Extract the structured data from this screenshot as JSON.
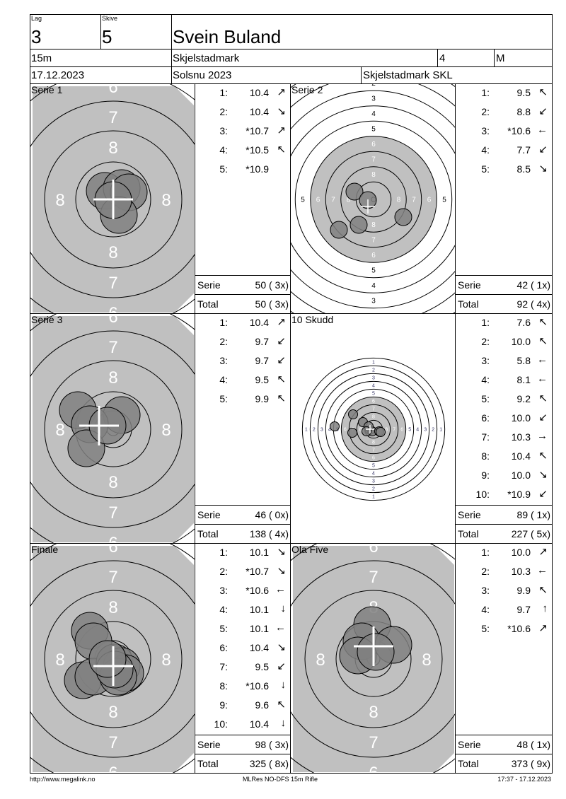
{
  "header": {
    "lag_label": "Lag",
    "lag": "3",
    "skive_label": "Skive",
    "skive": "5",
    "name": "Svein Buland",
    "distance": "15m",
    "club": "Skjelstadmark",
    "class_number": "4",
    "class": "M",
    "date": "17.12.2023",
    "event": "Solsnu 2023",
    "team": "Skjelstadmark SKL"
  },
  "panels": [
    {
      "title": "Serie 1",
      "shots": [
        [
          "1:",
          "10.4",
          "↗"
        ],
        [
          "2:",
          "10.4",
          "↘"
        ],
        [
          "3:",
          "*10.7",
          "↗"
        ],
        [
          "4:",
          "*10.5",
          "↖"
        ],
        [
          "5:",
          "*10.9",
          ""
        ]
      ],
      "serie_label": "Serie",
      "serie": "50 ( 3x)",
      "total_label": "Total",
      "total": "50 ( 3x)"
    },
    {
      "title": "Serie 2",
      "shots": [
        [
          "1:",
          "9.5",
          "↖"
        ],
        [
          "2:",
          "8.8",
          "↙"
        ],
        [
          "3:",
          "*10.6",
          "←"
        ],
        [
          "4:",
          "7.7",
          "↙"
        ],
        [
          "5:",
          "8.5",
          "↘"
        ]
      ],
      "serie_label": "Serie",
      "serie": "42 ( 1x)",
      "total_label": "Total",
      "total": "92 ( 4x)"
    },
    {
      "title": "Serie 3",
      "shots": [
        [
          "1:",
          "10.4",
          "↗"
        ],
        [
          "2:",
          "9.7",
          "↙"
        ],
        [
          "3:",
          "9.7",
          "↙"
        ],
        [
          "4:",
          "9.5",
          "↖"
        ],
        [
          "5:",
          "9.9",
          "↖"
        ]
      ],
      "serie_label": "Serie",
      "serie": "46 ( 0x)",
      "total_label": "Total",
      "total": "138 ( 4x)"
    },
    {
      "title": "10 Skudd",
      "shots": [
        [
          "1:",
          "7.6",
          "↖"
        ],
        [
          "2:",
          "10.0",
          "↖"
        ],
        [
          "3:",
          "5.8",
          "←"
        ],
        [
          "4:",
          "8.1",
          "←"
        ],
        [
          "5:",
          "9.2",
          "↖"
        ],
        [
          "6:",
          "10.0",
          "↙"
        ],
        [
          "7:",
          "10.3",
          "→"
        ],
        [
          "8:",
          "10.4",
          "↖"
        ],
        [
          "9:",
          "10.0",
          "↘"
        ],
        [
          "10:",
          "*10.9",
          "↙"
        ]
      ],
      "serie_label": "Serie",
      "serie": "89 ( 1x)",
      "total_label": "Total",
      "total": "227 ( 5x)"
    },
    {
      "title": "Finale",
      "shots": [
        [
          "1:",
          "10.1",
          "↘"
        ],
        [
          "2:",
          "*10.7",
          "↘"
        ],
        [
          "3:",
          "*10.6",
          "←"
        ],
        [
          "4:",
          "10.1",
          "↓"
        ],
        [
          "5:",
          "10.1",
          "←"
        ],
        [
          "6:",
          "10.4",
          "↘"
        ],
        [
          "7:",
          "9.5",
          "↙"
        ],
        [
          "8:",
          "*10.6",
          "↓"
        ],
        [
          "9:",
          "9.6",
          "↖"
        ],
        [
          "10:",
          "10.4",
          "↓"
        ]
      ],
      "serie_label": "Serie",
      "serie": "98 ( 3x)",
      "total_label": "Total",
      "total": "325 ( 8x)"
    },
    {
      "title": "Ola Five",
      "shots": [
        [
          "1:",
          "10.0",
          "↗"
        ],
        [
          "2:",
          "10.3",
          "←"
        ],
        [
          "3:",
          "9.9",
          "↖"
        ],
        [
          "4:",
          "9.7",
          "↑"
        ],
        [
          "5:",
          "*10.6",
          "↗"
        ]
      ],
      "serie_label": "Serie",
      "serie": "48 ( 1x)",
      "total_label": "Total",
      "total": "373 ( 9x)"
    }
  ],
  "footer": {
    "url": "http://www.megalink.no",
    "software": "MLRes NO-DFS 15m Rifle",
    "printed": "17:37 - 17.12.2023"
  },
  "colors": {
    "target_gray": "#c0c0c0",
    "shot_fill": "#808080"
  }
}
